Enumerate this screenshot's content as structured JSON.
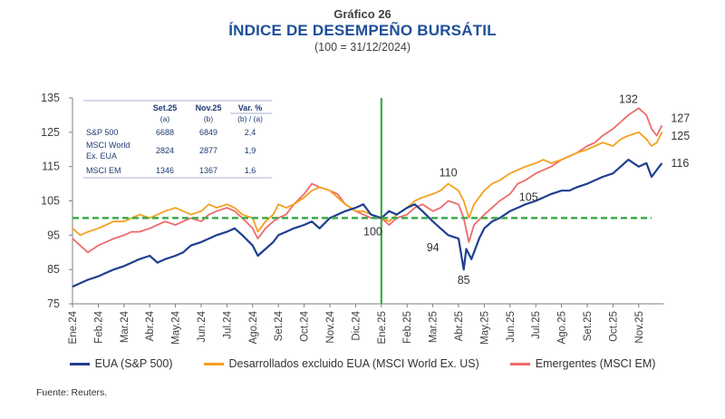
{
  "header": {
    "subtitle": "Gráfico 26",
    "title": "ÍNDICE DE DESEMPEÑO BURSÁTIL",
    "base_note": "(100 = 31/12/2024)"
  },
  "source": "Fuente: Reuters.",
  "colors": {
    "sp500": "#1F3F8F",
    "msci_world": "#F5A020",
    "msci_em": "#EE6B6B",
    "reference": "#3DAA4A",
    "axis": "#7F7F7F",
    "table_text": "#1F3B73"
  },
  "inset_table": {
    "columns": [
      "",
      "Set.25",
      "Nov.25",
      "Var. %"
    ],
    "subheaders": [
      "",
      "(a)",
      "(b)",
      "(b) / (a)"
    ],
    "rows": [
      {
        "name": "S&P 500",
        "name_line2": "",
        "a": "6688",
        "b": "6849",
        "var": "2,4"
      },
      {
        "name": "MSCI World",
        "name_line2": "Ex. EUA",
        "a": "2824",
        "b": "2877",
        "var": "1,9"
      },
      {
        "name": "MSCI EM",
        "name_line2": "",
        "a": "1346",
        "b": "1367",
        "var": "1,6"
      }
    ]
  },
  "chart_data": {
    "type": "line",
    "title": "ÍNDICE DE DESEMPEÑO BURSÁTIL",
    "subtitle": "(100 = 31/12/2024)",
    "xlabel": "",
    "ylabel": "",
    "ylim": [
      75,
      135
    ],
    "yticks": [
      75,
      85,
      95,
      105,
      115,
      125,
      135
    ],
    "x_tick_labels": [
      "Ene.24",
      "Feb.24",
      "Mar.24",
      "Abr.24",
      "May.24",
      "Jun.24",
      "Jul.24",
      "Ago.24",
      "Set.24",
      "Oct.24",
      "Nov.24",
      "Dic.24",
      "Ene.25",
      "Feb.25",
      "Mar.25",
      "Abr.25",
      "May.25",
      "Jun.25",
      "Jul.25",
      "Ago.25",
      "Set.25",
      "Oct.25",
      "Nov.25"
    ],
    "x_unit": "months since Ene.24",
    "xlim": [
      0,
      22.9
    ],
    "grid": false,
    "legend_position": "bottom",
    "reference_line": {
      "y": 100,
      "style": "dashed",
      "x_range": [
        0,
        22.5
      ]
    },
    "vertical_marker": {
      "x": 12,
      "label": "Ene.25"
    },
    "series": [
      {
        "name": "EUA (S&P 500)",
        "key": "sp500",
        "x": [
          0,
          0.3,
          0.6,
          1,
          1.3,
          1.6,
          2,
          2.3,
          2.6,
          3,
          3.3,
          3.6,
          4,
          4.3,
          4.6,
          5,
          5.3,
          5.6,
          6,
          6.3,
          6.6,
          7,
          7.2,
          7.5,
          7.8,
          8,
          8.3,
          8.6,
          9,
          9.3,
          9.6,
          10,
          10.3,
          10.6,
          11,
          11.3,
          11.6,
          12,
          12.3,
          12.6,
          13,
          13.3,
          13.6,
          14,
          14.3,
          14.6,
          15,
          15.2,
          15.3,
          15.5,
          15.8,
          16,
          16.3,
          16.6,
          17,
          17.3,
          17.6,
          18,
          18.3,
          18.6,
          19,
          19.3,
          19.6,
          20,
          20.3,
          20.6,
          21,
          21.3,
          21.6,
          21.8,
          22,
          22.3,
          22.5,
          22.7,
          22.9
        ],
        "values": [
          80,
          81,
          82,
          83,
          84,
          85,
          86,
          87,
          88,
          89,
          87,
          88,
          89,
          90,
          92,
          93,
          94,
          95,
          96,
          97,
          95,
          92,
          89,
          91,
          93,
          95,
          96,
          97,
          98,
          99,
          97,
          100,
          101,
          102,
          103,
          104,
          101,
          100,
          102,
          101,
          103,
          104,
          102,
          99,
          97,
          95,
          94,
          85,
          91,
          88,
          94,
          97,
          99,
          100,
          102,
          103,
          104,
          105,
          106,
          107,
          108,
          108,
          109,
          110,
          111,
          112,
          113,
          115,
          117,
          116,
          115,
          116,
          112,
          114,
          116
        ],
        "annotations": [
          {
            "x": 15.2,
            "y": 85,
            "label": "85"
          },
          {
            "x": 14.6,
            "y": 94,
            "label": "94"
          },
          {
            "x": 22.9,
            "y": 116,
            "label": "116"
          }
        ]
      },
      {
        "name": "Desarrollados excluido EUA (MSCI World Ex. US)",
        "key": "msci_world",
        "x": [
          0,
          0.3,
          0.6,
          1,
          1.3,
          1.6,
          2,
          2.3,
          2.6,
          3,
          3.3,
          3.6,
          4,
          4.3,
          4.6,
          5,
          5.3,
          5.6,
          6,
          6.3,
          6.6,
          7,
          7.2,
          7.5,
          7.8,
          8,
          8.3,
          8.6,
          9,
          9.3,
          9.6,
          10,
          10.3,
          10.6,
          11,
          11.3,
          11.6,
          12,
          12.3,
          12.6,
          13,
          13.3,
          13.6,
          14,
          14.3,
          14.6,
          15,
          15.2,
          15.4,
          15.6,
          16,
          16.3,
          16.6,
          17,
          17.3,
          17.6,
          18,
          18.3,
          18.6,
          19,
          19.3,
          19.6,
          20,
          20.3,
          20.6,
          21,
          21.3,
          21.6,
          22,
          22.3,
          22.5,
          22.7,
          22.9
        ],
        "values": [
          97,
          95,
          96,
          97,
          98,
          99,
          99,
          100,
          101,
          100,
          101,
          102,
          103,
          102,
          101,
          102,
          104,
          103,
          104,
          103,
          101,
          100,
          96,
          99,
          101,
          104,
          103,
          104,
          106,
          108,
          109,
          108,
          106,
          104,
          102,
          102,
          101,
          100,
          99,
          101,
          103,
          105,
          106,
          107,
          108,
          110,
          108,
          105,
          100,
          104,
          108,
          110,
          111,
          113,
          114,
          115,
          116,
          117,
          116,
          117,
          118,
          119,
          120,
          121,
          122,
          121,
          123,
          124,
          125,
          123,
          121,
          122,
          125
        ],
        "annotations": [
          {
            "x": 14.6,
            "y": 110,
            "label": "110"
          },
          {
            "x": 22.9,
            "y": 125,
            "label": "125"
          }
        ]
      },
      {
        "name": "Emergentes (MSCI EM)",
        "key": "msci_em",
        "x": [
          0,
          0.3,
          0.6,
          1,
          1.3,
          1.6,
          2,
          2.3,
          2.6,
          3,
          3.3,
          3.6,
          4,
          4.3,
          4.6,
          5,
          5.3,
          5.6,
          6,
          6.3,
          6.6,
          7,
          7.2,
          7.5,
          7.8,
          8,
          8.3,
          8.6,
          9,
          9.3,
          9.6,
          10,
          10.3,
          10.6,
          11,
          11.3,
          11.6,
          12,
          12.3,
          12.6,
          13,
          13.3,
          13.6,
          14,
          14.3,
          14.6,
          15,
          15.2,
          15.4,
          15.6,
          16,
          16.3,
          16.6,
          17,
          17.3,
          17.6,
          18,
          18.3,
          18.6,
          19,
          19.3,
          19.6,
          20,
          20.3,
          20.6,
          21,
          21.3,
          21.6,
          22,
          22.3,
          22.5,
          22.7,
          22.9
        ],
        "values": [
          94,
          92,
          90,
          92,
          93,
          94,
          95,
          96,
          96,
          97,
          98,
          99,
          98,
          99,
          100,
          99,
          101,
          102,
          103,
          102,
          100,
          97,
          94,
          97,
          99,
          100,
          101,
          104,
          107,
          110,
          109,
          108,
          107,
          104,
          102,
          101,
          100,
          100,
          98,
          100,
          101,
          103,
          104,
          102,
          103,
          105,
          104,
          100,
          93,
          98,
          101,
          103,
          105,
          107,
          110,
          111,
          113,
          114,
          115,
          117,
          118,
          119,
          121,
          122,
          124,
          126,
          128,
          130,
          132,
          130,
          126,
          124,
          127
        ],
        "annotations": [
          {
            "x": 17,
            "y": 105,
            "label": "105"
          },
          {
            "x": 21.6,
            "y": 132,
            "label": "132"
          },
          {
            "x": 22.9,
            "y": 127,
            "label": "127"
          }
        ]
      }
    ],
    "reference_annotation": {
      "x": 11.6,
      "y": 100,
      "label": "100"
    }
  }
}
